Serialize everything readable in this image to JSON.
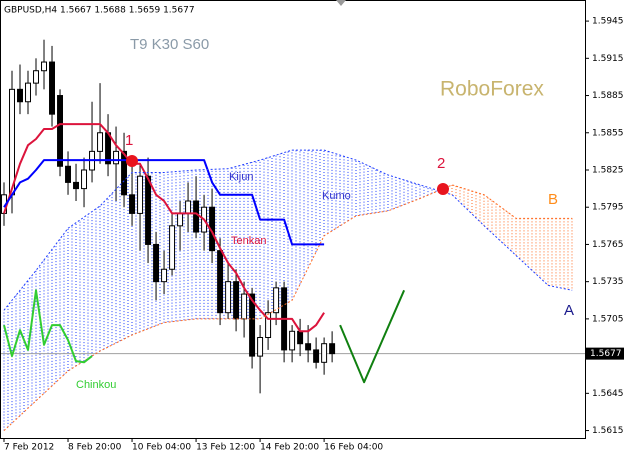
{
  "chart_data": {
    "type": "candlestick",
    "header": "GBPUSD,H4  1.5667 1.5688 1.5659 1.5677",
    "settings_label": "T9 K30 S60",
    "brand": "RoboForex",
    "annotations": [
      "1",
      "2",
      "Kijun",
      "Tenkan",
      "Kumo",
      "Chinkou",
      "A",
      "B"
    ],
    "xlim": [
      -0.5,
      72.6
    ],
    "xticks": [
      {
        "value": 0,
        "label": "7 Feb 2012"
      },
      {
        "value": 8,
        "label": "8 Feb 20:00"
      },
      {
        "value": 16,
        "label": "10 Feb 04:00"
      },
      {
        "value": 24,
        "label": "13 Feb 12:00"
      },
      {
        "value": 32,
        "label": "14 Feb 20:00"
      },
      {
        "value": 40,
        "label": "16 Feb 04:00"
      }
    ],
    "ylim": [
      1.5609,
      1.5962
    ],
    "yticks": [
      1.5945,
      1.5915,
      1.5885,
      1.5855,
      1.5825,
      1.5795,
      1.5765,
      1.5735,
      1.5705,
      1.5675,
      1.5645,
      1.5615
    ],
    "current_price": 1.5677,
    "candles": {
      "x": [
        0,
        1,
        2,
        3,
        4,
        5,
        6,
        7,
        8,
        9,
        10,
        11,
        12,
        13,
        14,
        15,
        16,
        17,
        18,
        19,
        20,
        21,
        22,
        23,
        24,
        25,
        26,
        27,
        28,
        29,
        30,
        31,
        32,
        33,
        34,
        35,
        36,
        37,
        38,
        39,
        40,
        41
      ],
      "open": [
        1.579,
        1.5805,
        1.589,
        1.588,
        1.5895,
        1.5905,
        1.5912,
        1.5885,
        1.5828,
        1.5815,
        1.581,
        1.5825,
        1.584,
        1.5855,
        1.583,
        1.584,
        1.5805,
        1.579,
        1.582,
        1.5765,
        1.5735,
        1.5745,
        1.578,
        1.579,
        1.58,
        1.5775,
        1.5795,
        1.576,
        1.571,
        1.5735,
        1.5705,
        1.5725,
        1.5675,
        1.569,
        1.571,
        1.573,
        1.568,
        1.5695,
        1.5685,
        1.568,
        1.567,
        1.5685
      ],
      "high": [
        1.5815,
        1.5905,
        1.591,
        1.5905,
        1.5915,
        1.593,
        1.5925,
        1.589,
        1.584,
        1.583,
        1.5835,
        1.588,
        1.5895,
        1.587,
        1.586,
        1.5855,
        1.583,
        1.583,
        1.5835,
        1.5775,
        1.576,
        1.579,
        1.58,
        1.5815,
        1.582,
        1.5805,
        1.581,
        1.577,
        1.575,
        1.5745,
        1.5735,
        1.573,
        1.57,
        1.572,
        1.5735,
        1.5735,
        1.57,
        1.5705,
        1.57,
        1.569,
        1.569,
        1.5695
      ],
      "low": [
        1.578,
        1.579,
        1.587,
        1.587,
        1.5885,
        1.589,
        1.586,
        1.582,
        1.5805,
        1.58,
        1.5795,
        1.5815,
        1.583,
        1.582,
        1.58,
        1.5795,
        1.578,
        1.576,
        1.575,
        1.572,
        1.5725,
        1.574,
        1.576,
        1.5775,
        1.577,
        1.576,
        1.575,
        1.57,
        1.5705,
        1.5695,
        1.569,
        1.5665,
        1.5645,
        1.568,
        1.57,
        1.567,
        1.567,
        1.5675,
        1.567,
        1.5665,
        1.566,
        1.567
      ],
      "close": [
        1.5805,
        1.589,
        1.588,
        1.5895,
        1.5905,
        1.5912,
        1.587,
        1.5828,
        1.5815,
        1.581,
        1.5825,
        1.584,
        1.5855,
        1.583,
        1.584,
        1.5805,
        1.579,
        1.582,
        1.5765,
        1.5735,
        1.5745,
        1.578,
        1.579,
        1.58,
        1.5775,
        1.5795,
        1.576,
        1.571,
        1.5735,
        1.5705,
        1.5725,
        1.5675,
        1.569,
        1.571,
        1.573,
        1.568,
        1.5695,
        1.5685,
        1.568,
        1.567,
        1.5685,
        1.5677
      ]
    },
    "series": [
      {
        "name": "Tenkan",
        "color": "#dc143c",
        "style": "solid",
        "width": 2,
        "x": [
          0,
          1,
          2,
          3,
          4,
          5,
          6,
          7,
          8,
          9,
          10,
          11,
          12,
          13,
          14,
          15,
          16,
          17,
          18,
          19,
          20,
          21,
          22,
          23,
          24,
          25,
          26,
          27,
          28,
          29,
          30,
          31,
          32,
          33,
          34,
          35,
          36,
          37,
          38,
          39,
          40
        ],
        "values": [
          1.579,
          1.581,
          1.583,
          1.5845,
          1.585,
          1.5858,
          1.5858,
          1.5862,
          1.5862,
          1.5862,
          1.5862,
          1.5862,
          1.5862,
          1.5855,
          1.5845,
          1.5838,
          1.583,
          1.583,
          1.5818,
          1.5805,
          1.58,
          1.579,
          1.579,
          1.579,
          1.579,
          1.5785,
          1.5775,
          1.5762,
          1.575,
          1.5742,
          1.573,
          1.572,
          1.5712,
          1.5705,
          1.5705,
          1.5705,
          1.5705,
          1.5695,
          1.5695,
          1.57,
          1.571
        ]
      },
      {
        "name": "Kijun",
        "color": "#0000ff",
        "style": "solid",
        "width": 2,
        "x": [
          0,
          1,
          2,
          3,
          4,
          5,
          6,
          7,
          8,
          9,
          10,
          11,
          12,
          13,
          14,
          15,
          16,
          17,
          18,
          19,
          20,
          21,
          22,
          23,
          24,
          25,
          26,
          27,
          28,
          29,
          30,
          31,
          32,
          33,
          34,
          35,
          36,
          37,
          38,
          39,
          40
        ],
        "values": [
          1.5795,
          1.5805,
          1.5815,
          1.5818,
          1.5825,
          1.5833,
          1.5833,
          1.5833,
          1.5833,
          1.5833,
          1.5833,
          1.5833,
          1.5833,
          1.5833,
          1.5833,
          1.5833,
          1.5833,
          1.5833,
          1.5833,
          1.5833,
          1.5833,
          1.5833,
          1.5833,
          1.5833,
          1.5833,
          1.5833,
          1.5815,
          1.5805,
          1.5805,
          1.5805,
          1.5805,
          1.5805,
          1.5785,
          1.5785,
          1.5785,
          1.5785,
          1.5765,
          1.5765,
          1.5765,
          1.5765,
          1.5765
        ]
      },
      {
        "name": "Senkou A",
        "color": "#ff6a20",
        "style": "dotted",
        "width": 1,
        "x": [
          0,
          4,
          8,
          12,
          16,
          20,
          24,
          28,
          32,
          36,
          40,
          44,
          48,
          52,
          56,
          60,
          64,
          68,
          71
        ],
        "values": [
          1.5615,
          1.5639,
          1.5663,
          1.5679,
          1.5692,
          1.5702,
          1.5705,
          1.5705,
          1.5705,
          1.572,
          1.5772,
          1.5788,
          1.5792,
          1.5802,
          1.5813,
          1.5805,
          1.5786,
          1.5786,
          1.5786
        ]
      },
      {
        "name": "Senkou B",
        "color": "#1e3cff",
        "style": "dotted",
        "width": 1,
        "x": [
          0,
          4,
          8,
          12,
          16,
          20,
          24,
          28,
          32,
          36,
          40,
          44,
          48,
          52,
          56,
          60,
          64,
          68,
          71
        ],
        "values": [
          1.5712,
          1.5744,
          1.5778,
          1.5796,
          1.5823,
          1.5823,
          1.5825,
          1.5826,
          1.5833,
          1.5841,
          1.5841,
          1.5833,
          1.5821,
          1.5813,
          1.5805,
          1.578,
          1.5756,
          1.5732,
          1.5728
        ]
      },
      {
        "name": "Chinkou",
        "color": "#32cd32",
        "style": "solid",
        "width": 2,
        "x": [
          0,
          1,
          2,
          3,
          4,
          5,
          6,
          7,
          8,
          9,
          10,
          11
        ],
        "values": [
          1.57,
          1.5675,
          1.5696,
          1.568,
          1.5728,
          1.5684,
          1.57,
          1.57,
          1.5688,
          1.5671,
          1.567,
          1.5675
        ]
      },
      {
        "name": "Forecast",
        "color": "#108010",
        "style": "solid",
        "width": 2,
        "x": [
          42,
          45,
          50
        ],
        "values": [
          1.57,
          1.5654,
          1.5728
        ]
      }
    ]
  }
}
